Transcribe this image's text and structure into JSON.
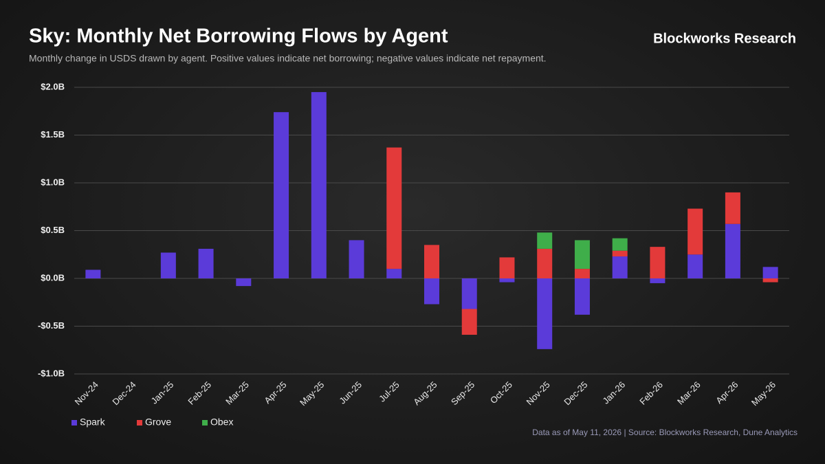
{
  "chart_data": {
    "type": "stacked_bar",
    "title": "Sky: Monthly Net Borrowing Flows by Agent",
    "subtitle": "Monthly change in USDS drawn by agent. Positive values indicate net borrowing; negative values indicate net repayment.",
    "brand": "Blockworks Research",
    "source": "Data as of May 11, 2026 | Source: Blockworks Research, Dune Analytics",
    "categories": [
      "Nov-24",
      "Dec-24",
      "Jan-25",
      "Feb-25",
      "Mar-25",
      "Apr-25",
      "May-25",
      "Jun-25",
      "Jul-25",
      "Aug-25",
      "Sep-25",
      "Oct-25",
      "Nov-25",
      "Dec-25",
      "Jan-26",
      "Feb-26",
      "Mar-26",
      "Apr-26",
      "May-26"
    ],
    "series": [
      {
        "name": "Spark",
        "color": "#5b3bd9",
        "values": [
          0.09,
          0,
          0.27,
          0.31,
          -0.08,
          1.74,
          1.95,
          0.4,
          0.1,
          -0.27,
          -0.32,
          -0.04,
          -0.74,
          -0.38,
          0.23,
          -0.05,
          0.25,
          0.57,
          0.12
        ]
      },
      {
        "name": "Grove",
        "color": "#e33a3a",
        "values": [
          0,
          0,
          0,
          0,
          0,
          0,
          0,
          0,
          1.27,
          0.35,
          -0.27,
          0.22,
          0.31,
          0.1,
          0.06,
          0.33,
          0.48,
          0.33,
          -0.04
        ]
      },
      {
        "name": "Obex",
        "color": "#3fae4a",
        "values": [
          0,
          0,
          0,
          0,
          0,
          0,
          0,
          0,
          0,
          0,
          0,
          0,
          0.17,
          0.3,
          0.13,
          0,
          0,
          0,
          0
        ]
      }
    ],
    "ylim": [
      -1.0,
      2.0
    ],
    "yticks": [
      {
        "value": -1.0,
        "label": "-$1.0B"
      },
      {
        "value": -0.5,
        "label": "-$0.5B"
      },
      {
        "value": 0.0,
        "label": "$0.0B"
      },
      {
        "value": 0.5,
        "label": "$0.5B"
      },
      {
        "value": 1.0,
        "label": "$1.0B"
      },
      {
        "value": 1.5,
        "label": "$1.5B"
      },
      {
        "value": 2.0,
        "label": "$2.0B"
      }
    ],
    "grid": true
  }
}
